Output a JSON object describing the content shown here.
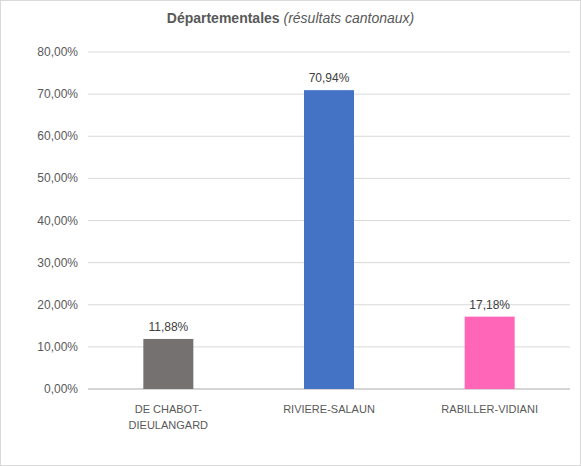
{
  "chart_data": {
    "type": "bar",
    "title": "Départementales",
    "subtitle": "(résultats cantonaux)",
    "categories": [
      "DE CHABOT-DIEULANGARD",
      "RIVIERE-SALAUN",
      "RABILLER-VIDIANI"
    ],
    "values": [
      11.88,
      70.94,
      17.18
    ],
    "value_labels": [
      "11,88%",
      "70,94%",
      "17,18%"
    ],
    "colors": [
      "#767171",
      "#4472c4",
      "#ff66b8"
    ],
    "ylim": [
      0,
      80
    ],
    "yticks": [
      {
        "value": 0,
        "label": "0,00%"
      },
      {
        "value": 10,
        "label": "10,00%"
      },
      {
        "value": 20,
        "label": "20,00%"
      },
      {
        "value": 30,
        "label": "30,00%"
      },
      {
        "value": 40,
        "label": "40,00%"
      },
      {
        "value": 50,
        "label": "50,00%"
      },
      {
        "value": 60,
        "label": "60,00%"
      },
      {
        "value": 70,
        "label": "70,00%"
      },
      {
        "value": 80,
        "label": "80,00%"
      }
    ],
    "grid": true,
    "data_labels": true
  }
}
